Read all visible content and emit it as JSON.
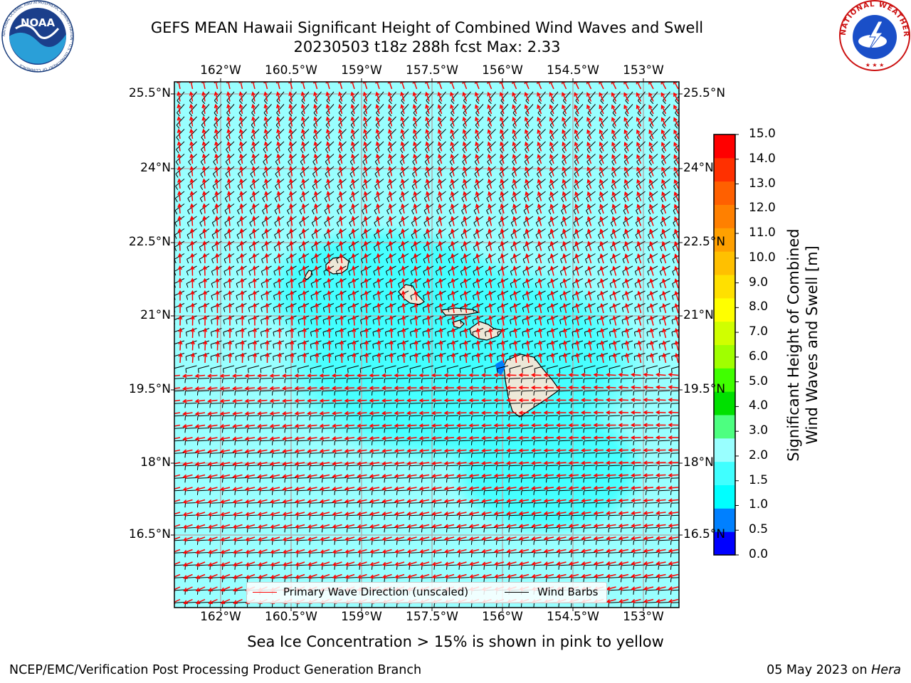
{
  "title": {
    "line1": "GEFS MEAN Hawaii Significant Height of Combined Wind Waves and Swell",
    "line2": "20230503 t18z 288h fcst   Max: 2.33"
  },
  "axes": {
    "lon_labels": [
      "162°W",
      "160.5°W",
      "159°W",
      "157.5°W",
      "156°W",
      "154.5°W",
      "153°W"
    ],
    "lat_labels": [
      "25.5°N",
      "24°N",
      "22.5°N",
      "21°N",
      "19.5°N",
      "18°N",
      "16.5°N"
    ]
  },
  "colorbar": {
    "title_line1": "Significant Height of Combined",
    "title_line2": "Wind Waves and Swell [m]",
    "ticks": [
      "15.0",
      "14.0",
      "13.0",
      "12.0",
      "11.0",
      "10.0",
      "9.0",
      "8.0",
      "7.0",
      "6.0",
      "5.0",
      "4.0",
      "3.0",
      "2.0",
      "1.5",
      "1.0",
      "0.5",
      "0.0"
    ],
    "colors": [
      "#0000ff",
      "#0080ff",
      "#00ffff",
      "#40ffff",
      "#99ffff",
      "#4dff80",
      "#00e000",
      "#40ff00",
      "#a0ff00",
      "#d0ff00",
      "#ffff00",
      "#ffe000",
      "#ffc000",
      "#ffa000",
      "#ff8000",
      "#ff6000",
      "#ff3000",
      "#ff0000"
    ]
  },
  "legend": {
    "wave_direction": "Primary Wave Direction (unscaled)",
    "wind_barbs": "Wind Barbs",
    "wave_color": "#ff0000",
    "barb_color": "#000000"
  },
  "note": "Sea Ice Concentration > 15% is shown in pink to yellow",
  "footer": {
    "left": "NCEP/EMC/Verification Post Processing Product Generation Branch",
    "date": "05 May 2023 on ",
    "machine": "Hera"
  },
  "logos": {
    "noaa_text": "NOAA",
    "noaa_ring_text": "NATIONAL OCEANIC AND ATMOSPHERIC ADMINISTRATION · U.S. DEPARTMENT OF COMMERCE",
    "nws_ring_text": "NATIONAL WEATHER SERVICE"
  },
  "colors": {
    "ocean": "#99ffff",
    "swell_core": "#40ffff",
    "land": "#ede8d8",
    "grid": "#b0b0b0"
  }
}
